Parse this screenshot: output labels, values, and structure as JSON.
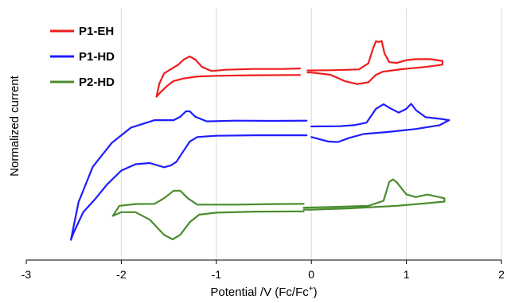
{
  "chart_data": {
    "type": "line",
    "xlabel": "Potential /V (Fc/Fc",
    "xlabel_sup": "+",
    "xlabel_end": ")",
    "ylabel": "Normalized current",
    "xlim": [
      -3,
      2
    ],
    "ylim": [
      0,
      1
    ],
    "x_ticks": [
      -3,
      -2,
      -1,
      0,
      1,
      2
    ],
    "x_tick_labels": [
      "-3",
      "-2",
      "-1",
      "0",
      "1",
      "2"
    ],
    "y_ticks_shown": false,
    "grid": "vertical",
    "legend_position": "top-left",
    "series": [
      {
        "name": "P1-EH",
        "color": "#ee1c1c",
        "segments": [
          [
            [
              -0.12,
              0.76
            ],
            [
              -0.3,
              0.758
            ],
            [
              -0.6,
              0.758
            ],
            [
              -0.9,
              0.755
            ],
            [
              -1.05,
              0.75
            ],
            [
              -1.15,
              0.766
            ],
            [
              -1.22,
              0.795
            ],
            [
              -1.28,
              0.808
            ],
            [
              -1.34,
              0.796
            ],
            [
              -1.4,
              0.775
            ],
            [
              -1.5,
              0.752
            ],
            [
              -1.55,
              0.74
            ],
            [
              -1.6,
              0.7
            ],
            [
              -1.63,
              0.648
            ],
            [
              -1.59,
              0.665
            ],
            [
              -1.52,
              0.69
            ],
            [
              -1.45,
              0.71
            ],
            [
              -1.35,
              0.72
            ],
            [
              -1.2,
              0.728
            ],
            [
              -1.0,
              0.731
            ],
            [
              -0.6,
              0.733
            ],
            [
              -0.12,
              0.734
            ]
          ],
          [
            [
              -0.04,
              0.752
            ],
            [
              0.2,
              0.753
            ],
            [
              0.5,
              0.756
            ],
            [
              0.6,
              0.78
            ],
            [
              0.65,
              0.84
            ],
            [
              0.68,
              0.868
            ],
            [
              0.71,
              0.865
            ],
            [
              0.74,
              0.869
            ],
            [
              0.77,
              0.82
            ],
            [
              0.82,
              0.785
            ],
            [
              0.9,
              0.782
            ],
            [
              1.0,
              0.793
            ],
            [
              1.1,
              0.797
            ],
            [
              1.25,
              0.797
            ],
            [
              1.38,
              0.79
            ],
            [
              1.38,
              0.775
            ],
            [
              1.2,
              0.766
            ],
            [
              0.95,
              0.757
            ],
            [
              0.75,
              0.747
            ],
            [
              0.68,
              0.735
            ],
            [
              0.6,
              0.705
            ],
            [
              0.48,
              0.698
            ],
            [
              0.35,
              0.71
            ],
            [
              0.2,
              0.735
            ],
            [
              0.0,
              0.744
            ],
            [
              -0.04,
              0.744
            ]
          ]
        ]
      },
      {
        "name": "P1-HD",
        "color": "#1d1dff",
        "segments": [
          [
            [
              -0.05,
              0.553
            ],
            [
              -0.4,
              0.552
            ],
            [
              -0.8,
              0.553
            ],
            [
              -1.1,
              0.55
            ],
            [
              -1.22,
              0.568
            ],
            [
              -1.28,
              0.59
            ],
            [
              -1.32,
              0.59
            ],
            [
              -1.38,
              0.568
            ],
            [
              -1.45,
              0.555
            ],
            [
              -1.65,
              0.555
            ],
            [
              -1.9,
              0.525
            ],
            [
              -2.1,
              0.465
            ],
            [
              -2.3,
              0.37
            ],
            [
              -2.45,
              0.23
            ],
            [
              -2.53,
              0.08
            ],
            [
              -2.5,
              0.11
            ],
            [
              -2.4,
              0.19
            ],
            [
              -2.28,
              0.24
            ],
            [
              -2.15,
              0.3
            ],
            [
              -2.0,
              0.355
            ],
            [
              -1.85,
              0.38
            ],
            [
              -1.7,
              0.385
            ],
            [
              -1.55,
              0.368
            ],
            [
              -1.48,
              0.375
            ],
            [
              -1.42,
              0.39
            ],
            [
              -1.35,
              0.43
            ],
            [
              -1.28,
              0.47
            ],
            [
              -1.2,
              0.488
            ],
            [
              -1.0,
              0.493
            ],
            [
              -0.6,
              0.495
            ],
            [
              -0.2,
              0.495
            ],
            [
              -0.05,
              0.495
            ]
          ],
          [
            [
              0.0,
              0.488
            ],
            [
              0.18,
              0.47
            ],
            [
              0.28,
              0.468
            ],
            [
              0.4,
              0.485
            ],
            [
              0.55,
              0.5
            ],
            [
              0.8,
              0.508
            ],
            [
              1.1,
              0.52
            ],
            [
              1.35,
              0.535
            ],
            [
              1.45,
              0.555
            ],
            [
              1.36,
              0.56
            ],
            [
              1.2,
              0.567
            ],
            [
              1.1,
              0.595
            ],
            [
              1.05,
              0.62
            ],
            [
              1.0,
              0.6
            ],
            [
              0.92,
              0.585
            ],
            [
              0.84,
              0.6
            ],
            [
              0.76,
              0.618
            ],
            [
              0.68,
              0.6
            ],
            [
              0.58,
              0.545
            ],
            [
              0.45,
              0.535
            ],
            [
              0.3,
              0.531
            ],
            [
              0.0,
              0.53
            ]
          ]
        ]
      },
      {
        "name": "P2-HD",
        "color": "#4a8c2e",
        "segments": [
          [
            [
              -0.08,
              0.223
            ],
            [
              -0.4,
              0.222
            ],
            [
              -0.8,
              0.22
            ],
            [
              -1.2,
              0.22
            ],
            [
              -1.3,
              0.245
            ],
            [
              -1.38,
              0.275
            ],
            [
              -1.45,
              0.275
            ],
            [
              -1.55,
              0.245
            ],
            [
              -1.65,
              0.223
            ],
            [
              -1.85,
              0.222
            ],
            [
              -2.02,
              0.215
            ],
            [
              -2.09,
              0.175
            ],
            [
              -2.0,
              0.19
            ],
            [
              -1.85,
              0.19
            ],
            [
              -1.7,
              0.16
            ],
            [
              -1.55,
              0.1
            ],
            [
              -1.46,
              0.082
            ],
            [
              -1.38,
              0.1
            ],
            [
              -1.28,
              0.15
            ],
            [
              -1.18,
              0.18
            ],
            [
              -1.0,
              0.188
            ],
            [
              -0.6,
              0.192
            ],
            [
              -0.08,
              0.193
            ]
          ],
          [
            [
              -0.08,
              0.208
            ],
            [
              0.2,
              0.21
            ],
            [
              0.6,
              0.215
            ],
            [
              0.76,
              0.235
            ],
            [
              0.82,
              0.31
            ],
            [
              0.86,
              0.32
            ],
            [
              0.9,
              0.308
            ],
            [
              1.0,
              0.26
            ],
            [
              1.1,
              0.25
            ],
            [
              1.22,
              0.26
            ],
            [
              1.28,
              0.255
            ],
            [
              1.4,
              0.245
            ],
            [
              1.4,
              0.232
            ],
            [
              1.2,
              0.225
            ],
            [
              0.9,
              0.215
            ],
            [
              0.4,
              0.205
            ],
            [
              0.0,
              0.2
            ],
            [
              -0.08,
              0.2
            ]
          ]
        ]
      }
    ]
  }
}
